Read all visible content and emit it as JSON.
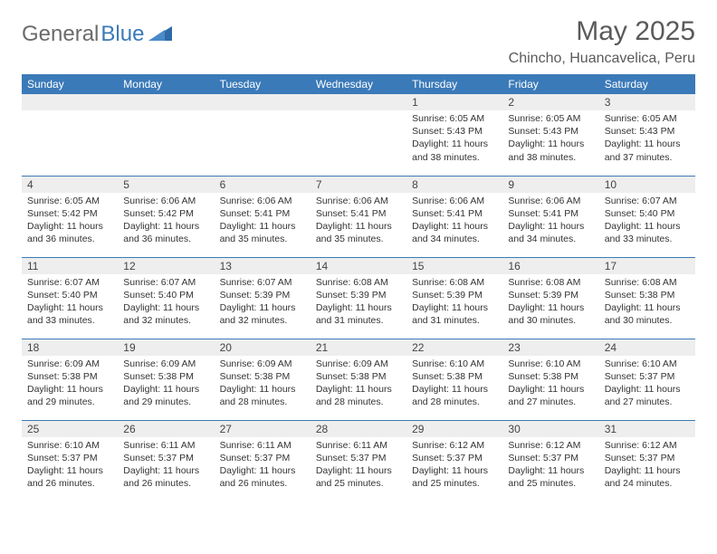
{
  "brand": {
    "part1": "General",
    "part2": "Blue"
  },
  "month_title": "May 2025",
  "location": "Chincho, Huancavelica, Peru",
  "colors": {
    "header_bg": "#3b7ab8",
    "header_text": "#ffffff",
    "daynum_bg": "#eeeeee",
    "border": "#3b7ab8",
    "title_text": "#5a5a5a",
    "body_text": "#333333"
  },
  "day_headers": [
    "Sunday",
    "Monday",
    "Tuesday",
    "Wednesday",
    "Thursday",
    "Friday",
    "Saturday"
  ],
  "weeks": [
    [
      null,
      null,
      null,
      null,
      {
        "n": "1",
        "sr": "6:05 AM",
        "ss": "5:43 PM",
        "dh": "11",
        "dm": "38"
      },
      {
        "n": "2",
        "sr": "6:05 AM",
        "ss": "5:43 PM",
        "dh": "11",
        "dm": "38"
      },
      {
        "n": "3",
        "sr": "6:05 AM",
        "ss": "5:43 PM",
        "dh": "11",
        "dm": "37"
      }
    ],
    [
      {
        "n": "4",
        "sr": "6:05 AM",
        "ss": "5:42 PM",
        "dh": "11",
        "dm": "36"
      },
      {
        "n": "5",
        "sr": "6:06 AM",
        "ss": "5:42 PM",
        "dh": "11",
        "dm": "36"
      },
      {
        "n": "6",
        "sr": "6:06 AM",
        "ss": "5:41 PM",
        "dh": "11",
        "dm": "35"
      },
      {
        "n": "7",
        "sr": "6:06 AM",
        "ss": "5:41 PM",
        "dh": "11",
        "dm": "35"
      },
      {
        "n": "8",
        "sr": "6:06 AM",
        "ss": "5:41 PM",
        "dh": "11",
        "dm": "34"
      },
      {
        "n": "9",
        "sr": "6:06 AM",
        "ss": "5:41 PM",
        "dh": "11",
        "dm": "34"
      },
      {
        "n": "10",
        "sr": "6:07 AM",
        "ss": "5:40 PM",
        "dh": "11",
        "dm": "33"
      }
    ],
    [
      {
        "n": "11",
        "sr": "6:07 AM",
        "ss": "5:40 PM",
        "dh": "11",
        "dm": "33"
      },
      {
        "n": "12",
        "sr": "6:07 AM",
        "ss": "5:40 PM",
        "dh": "11",
        "dm": "32"
      },
      {
        "n": "13",
        "sr": "6:07 AM",
        "ss": "5:39 PM",
        "dh": "11",
        "dm": "32"
      },
      {
        "n": "14",
        "sr": "6:08 AM",
        "ss": "5:39 PM",
        "dh": "11",
        "dm": "31"
      },
      {
        "n": "15",
        "sr": "6:08 AM",
        "ss": "5:39 PM",
        "dh": "11",
        "dm": "31"
      },
      {
        "n": "16",
        "sr": "6:08 AM",
        "ss": "5:39 PM",
        "dh": "11",
        "dm": "30"
      },
      {
        "n": "17",
        "sr": "6:08 AM",
        "ss": "5:38 PM",
        "dh": "11",
        "dm": "30"
      }
    ],
    [
      {
        "n": "18",
        "sr": "6:09 AM",
        "ss": "5:38 PM",
        "dh": "11",
        "dm": "29"
      },
      {
        "n": "19",
        "sr": "6:09 AM",
        "ss": "5:38 PM",
        "dh": "11",
        "dm": "29"
      },
      {
        "n": "20",
        "sr": "6:09 AM",
        "ss": "5:38 PM",
        "dh": "11",
        "dm": "28"
      },
      {
        "n": "21",
        "sr": "6:09 AM",
        "ss": "5:38 PM",
        "dh": "11",
        "dm": "28"
      },
      {
        "n": "22",
        "sr": "6:10 AM",
        "ss": "5:38 PM",
        "dh": "11",
        "dm": "28"
      },
      {
        "n": "23",
        "sr": "6:10 AM",
        "ss": "5:38 PM",
        "dh": "11",
        "dm": "27"
      },
      {
        "n": "24",
        "sr": "6:10 AM",
        "ss": "5:37 PM",
        "dh": "11",
        "dm": "27"
      }
    ],
    [
      {
        "n": "25",
        "sr": "6:10 AM",
        "ss": "5:37 PM",
        "dh": "11",
        "dm": "26"
      },
      {
        "n": "26",
        "sr": "6:11 AM",
        "ss": "5:37 PM",
        "dh": "11",
        "dm": "26"
      },
      {
        "n": "27",
        "sr": "6:11 AM",
        "ss": "5:37 PM",
        "dh": "11",
        "dm": "26"
      },
      {
        "n": "28",
        "sr": "6:11 AM",
        "ss": "5:37 PM",
        "dh": "11",
        "dm": "25"
      },
      {
        "n": "29",
        "sr": "6:12 AM",
        "ss": "5:37 PM",
        "dh": "11",
        "dm": "25"
      },
      {
        "n": "30",
        "sr": "6:12 AM",
        "ss": "5:37 PM",
        "dh": "11",
        "dm": "25"
      },
      {
        "n": "31",
        "sr": "6:12 AM",
        "ss": "5:37 PM",
        "dh": "11",
        "dm": "24"
      }
    ]
  ],
  "labels": {
    "sunrise": "Sunrise:",
    "sunset": "Sunset:",
    "daylight_prefix": "Daylight:",
    "hours_word": "hours",
    "and_word": "and",
    "minutes_word": "minutes."
  }
}
